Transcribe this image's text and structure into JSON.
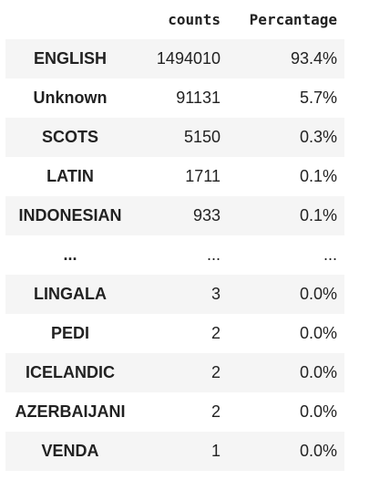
{
  "table": {
    "headers": {
      "index": "",
      "counts": "counts",
      "percentage": "Percantage"
    },
    "rows": [
      {
        "language": "ENGLISH",
        "counts": "1494010",
        "percentage": "93.4%"
      },
      {
        "language": "Unknown",
        "counts": "91131",
        "percentage": "5.7%"
      },
      {
        "language": "SCOTS",
        "counts": "5150",
        "percentage": "0.3%"
      },
      {
        "language": "LATIN",
        "counts": "1711",
        "percentage": "0.1%"
      },
      {
        "language": "INDONESIAN",
        "counts": "933",
        "percentage": "0.1%"
      },
      {
        "language": "...",
        "counts": "...",
        "percentage": "..."
      },
      {
        "language": "LINGALA",
        "counts": "3",
        "percentage": "0.0%"
      },
      {
        "language": "PEDI",
        "counts": "2",
        "percentage": "0.0%"
      },
      {
        "language": "ICELANDIC",
        "counts": "2",
        "percentage": "0.0%"
      },
      {
        "language": "AZERBAIJANI",
        "counts": "2",
        "percentage": "0.0%"
      },
      {
        "language": "VENDA",
        "counts": "1",
        "percentage": "0.0%"
      }
    ]
  }
}
